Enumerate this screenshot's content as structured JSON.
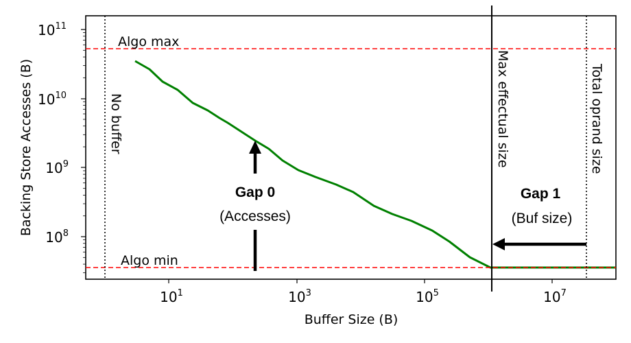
{
  "chart_data": {
    "type": "line",
    "title": "",
    "xlabel": "Buffer Size (B)",
    "ylabel": "Backing Store Accesses (B)",
    "xscale": "log",
    "yscale": "log",
    "xlim": [
      0.5,
      98000000.0
    ],
    "ylim": [
      24000000.0,
      160000000000.0
    ],
    "grid": false,
    "x_ticks": [
      {
        "value": 10,
        "label_base": "10",
        "label_exp": "1"
      },
      {
        "value": 1000,
        "label_base": "10",
        "label_exp": "3"
      },
      {
        "value": 100000,
        "label_base": "10",
        "label_exp": "5"
      },
      {
        "value": 10000000,
        "label_base": "10",
        "label_exp": "7"
      }
    ],
    "y_ticks": [
      {
        "value": 100000000.0,
        "label_base": "10",
        "label_exp": "8"
      },
      {
        "value": 1000000000.0,
        "label_base": "10",
        "label_exp": "9"
      },
      {
        "value": 10000000000.0,
        "label_base": "10",
        "label_exp": "10"
      },
      {
        "value": 100000000000.0,
        "label_base": "10",
        "label_exp": "11"
      }
    ],
    "series": [
      {
        "name": "Backing store accesses",
        "color": "#008000",
        "x": [
          3,
          5,
          8,
          14,
          24,
          41,
          62,
          83,
          137,
          224,
          364,
          600,
          1070,
          1960,
          4150,
          7600,
          16000,
          31000,
          62000,
          130000,
          240000,
          510000,
          1070000,
          98000000
        ],
        "y": [
          35000000000.0,
          26000000000.0,
          18000000000.0,
          13500000000.0,
          8700000000.0,
          6700000000.0,
          5300000000.0,
          4500000000.0,
          3300000000.0,
          2400000000.0,
          1900000000.0,
          1260000000.0,
          910000000.0,
          730000000.0,
          560000000.0,
          440000000.0,
          280000000.0,
          215000000.0,
          150000000.0,
          120000000.0,
          85000000.0,
          50000000.0,
          36000000.0,
          36000000.0
        ]
      }
    ],
    "hlines": [
      {
        "name": "Algo max",
        "value": 52000000000.0,
        "color": "#ff0000",
        "style": "dashed",
        "label": "Algo max"
      },
      {
        "name": "Algo min",
        "value": 36000000.0,
        "color": "#ff0000",
        "style": "dashed",
        "label": "Algo min"
      }
    ],
    "vlines": [
      {
        "name": "No buffer",
        "value": 1,
        "color": "#000000",
        "style": "dotted",
        "label": "No buffer"
      },
      {
        "name": "Max effectual size",
        "value": 1070000.0,
        "color": "#000000",
        "style": "solid",
        "label": "Max effectual size"
      },
      {
        "name": "Total oprand size",
        "value": 34000000.0,
        "color": "#000000",
        "style": "dotted",
        "label": "Total oprand size"
      }
    ],
    "annotations": [
      {
        "title": "Gap 0",
        "subtitle": "(Accesses)",
        "arrow": "vertical, from Algo min up to curve at x≈224"
      },
      {
        "title": "Gap 1",
        "subtitle": "(Buf size)",
        "arrow": "horizontal, from Total oprand size left to Max effectual size"
      }
    ]
  },
  "labels": {
    "xlabel": "Buffer Size (B)",
    "ylabel": "Backing Store Accesses (B)",
    "algo_max": "Algo max",
    "algo_min": "Algo min",
    "no_buffer": "No buffer",
    "max_effectual": "Max effectual size",
    "total_oprand": "Total oprand size",
    "gap0_title": "Gap 0",
    "gap0_sub": "(Accesses)",
    "gap1_title": "Gap 1",
    "gap1_sub": "(Buf size)",
    "xt1_b": "10",
    "xt1_e": "1",
    "xt3_b": "10",
    "xt3_e": "3",
    "xt5_b": "10",
    "xt5_e": "5",
    "xt7_b": "10",
    "xt7_e": "7",
    "yt8_b": "10",
    "yt8_e": "8",
    "yt9_b": "10",
    "yt9_e": "9",
    "yt10_b": "10",
    "yt10_e": "10",
    "yt11_b": "10",
    "yt11_e": "11"
  },
  "colors": {
    "curve": "#008000",
    "bound": "#ff0000",
    "axis": "#000000"
  }
}
